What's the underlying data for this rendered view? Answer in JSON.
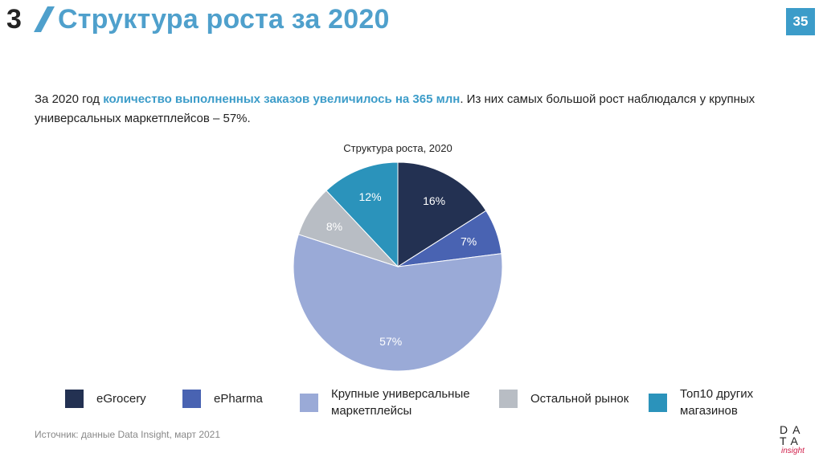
{
  "header": {
    "section_number": "3",
    "title": "Структура роста за 2020",
    "page_number": "35"
  },
  "intro": {
    "part1": "За 2020 год ",
    "highlight": "количество выполненных заказов увеличилось на 365 млн",
    "part2": ". Из них самых большой рост наблюдался у крупных универсальных маркетплейсов – 57%."
  },
  "chart_data": {
    "type": "pie",
    "title": "Структура роста, 2020",
    "slices": [
      {
        "name": "eGrocery",
        "value": 16,
        "label": "16%",
        "color": "#233152"
      },
      {
        "name": "ePharma",
        "value": 7,
        "label": "7%",
        "color": "#4963b2"
      },
      {
        "name": "Крупные универсальные маркетплейсы",
        "value": 57,
        "label": "57%",
        "color": "#9aaad7"
      },
      {
        "name": "Остальной рынок",
        "value": 8,
        "label": "8%",
        "color": "#b8bdc4"
      },
      {
        "name": "Топ10 других магазинов",
        "value": 12,
        "label": "12%",
        "color": "#2b93bb"
      }
    ],
    "start_angle_deg": 0,
    "direction": "clockwise",
    "legend_position": "bottom"
  },
  "legend": {
    "items": [
      {
        "label": "eGrocery"
      },
      {
        "label": "ePharma"
      },
      {
        "label": "Крупные универсальные маркетплейсы"
      },
      {
        "label": "Остальной рынок"
      },
      {
        "label": "Топ10 других магазинов"
      }
    ]
  },
  "footer": {
    "source": "Источник: данные Data Insight, март 2021"
  },
  "logo": {
    "line1": "DA",
    "line2": "TA",
    "line3": "insight"
  },
  "colors": {
    "accent": "#3c9cc9",
    "badge": "#3c9cc9",
    "logo_accent": "#d01f4a"
  }
}
